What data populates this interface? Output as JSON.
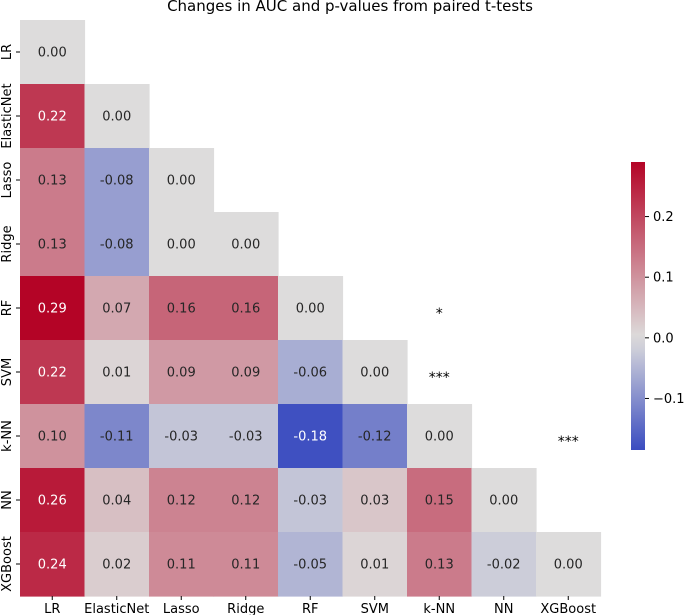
{
  "chart_data": {
    "type": "heatmap",
    "title": "Changes in AUC and p-values from paired t-tests",
    "labels": [
      "LR",
      "ElasticNet",
      "Lasso",
      "Ridge",
      "RF",
      "SVM",
      "k-NN",
      "NN",
      "XGBoost"
    ],
    "matrix": [
      [
        "0.00"
      ],
      [
        "0.22",
        "0.00"
      ],
      [
        "0.13",
        "-0.08",
        "0.00"
      ],
      [
        "0.13",
        "-0.08",
        "0.00",
        "0.00"
      ],
      [
        "0.29",
        "0.07",
        "0.16",
        "0.16",
        "0.00"
      ],
      [
        "0.22",
        "0.01",
        "0.09",
        "0.09",
        "-0.06",
        "0.00"
      ],
      [
        "0.10",
        "-0.11",
        "-0.03",
        "-0.03",
        "-0.18",
        "-0.12",
        "0.00"
      ],
      [
        "0.26",
        "0.04",
        "0.12",
        "0.12",
        "-0.03",
        "0.03",
        "0.15",
        "0.00"
      ],
      [
        "0.24",
        "0.02",
        "0.11",
        "0.11",
        "-0.05",
        "0.01",
        "0.13",
        "-0.02",
        "0.00"
      ]
    ],
    "significance": [
      {
        "row": "RF",
        "col": "k-NN",
        "label": "*"
      },
      {
        "row": "SVM",
        "col": "k-NN",
        "label": "***"
      },
      {
        "row": "k-NN",
        "col": "XGBoost",
        "label": "***"
      }
    ],
    "colorbar": {
      "min": -0.185,
      "max": 0.29,
      "ticks": [
        "0.2",
        "0.1",
        "0.0",
        "−0.1"
      ],
      "tick_values": [
        0.2,
        0.1,
        0.0,
        -0.1
      ],
      "colormap": "coolwarm"
    }
  }
}
